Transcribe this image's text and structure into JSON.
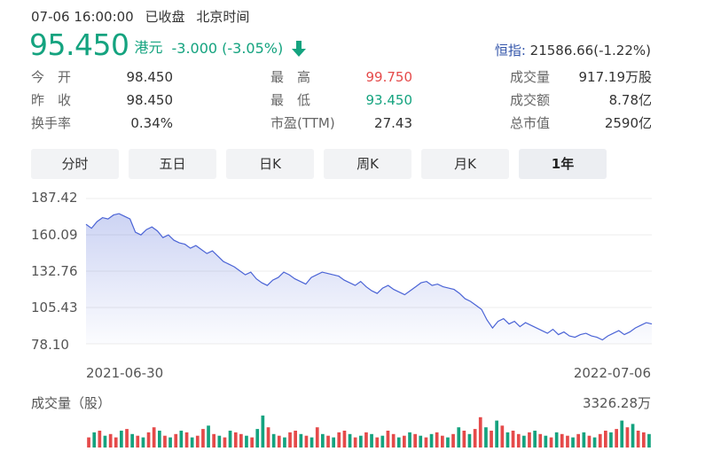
{
  "status": {
    "time": "07-06 16:00:00",
    "state": "已收盘",
    "tz": "北京时间"
  },
  "quote": {
    "price": "95.450",
    "currency": "港元",
    "change": "-3.000 (-3.05%)",
    "direction": "down"
  },
  "index": {
    "label": "恒指:",
    "value": "21586.66(-1.22%)"
  },
  "stats": [
    {
      "label": "今　开",
      "value": "98.450"
    },
    {
      "label": "最　高",
      "value": "99.750"
    },
    {
      "label": "成交量",
      "value": "917.19万股"
    },
    {
      "label": "昨　收",
      "value": "98.450"
    },
    {
      "label": "最　低",
      "value": "93.450"
    },
    {
      "label": "成交额",
      "value": "8.78亿"
    },
    {
      "label": "换手率",
      "value": "0.34%"
    },
    {
      "label": "市盈(TTM)",
      "value": "27.43"
    },
    {
      "label": "总市值",
      "value": "2590亿"
    }
  ],
  "tabs": [
    {
      "label": "分时",
      "active": false
    },
    {
      "label": "五日",
      "active": false
    },
    {
      "label": "日K",
      "active": false
    },
    {
      "label": "周K",
      "active": false
    },
    {
      "label": "月K",
      "active": false
    },
    {
      "label": "1年",
      "active": true
    }
  ],
  "colors": {
    "up": "#e54a4a",
    "down": "#14a37f",
    "line": "#4b64d6"
  },
  "chart_data": [
    {
      "type": "area",
      "y_ticks": [
        "187.42",
        "160.09",
        "132.76",
        "105.43",
        "78.10"
      ],
      "ylim": [
        78.1,
        187.42
      ],
      "x_labels": [
        "2021-06-30",
        "2022-07-06"
      ],
      "grid": true,
      "values": [
        168,
        165,
        170,
        173,
        172,
        175,
        176,
        174,
        172,
        162,
        160,
        164,
        166,
        163,
        158,
        160,
        156,
        154,
        153,
        150,
        152,
        149,
        146,
        148,
        144,
        140,
        138,
        136,
        133,
        130,
        132,
        127,
        124,
        122,
        126,
        128,
        132,
        130,
        127,
        125,
        123,
        128,
        130,
        132,
        131,
        130,
        129,
        126,
        124,
        122,
        125,
        121,
        118,
        116,
        120,
        122,
        119,
        117,
        115,
        118,
        121,
        124,
        125,
        122,
        123,
        121,
        120,
        119,
        116,
        112,
        110,
        107,
        104,
        96,
        90,
        95,
        97,
        93,
        95,
        91,
        94,
        92,
        90,
        88,
        86,
        89,
        85,
        87,
        84,
        83,
        85,
        86,
        84,
        83,
        81,
        84,
        86,
        88,
        85,
        87,
        90,
        92,
        94,
        93
      ]
    },
    {
      "type": "bar",
      "title": "成交量（股）",
      "max_label": "3326.28万",
      "values": [
        0.3,
        0.45,
        0.5,
        0.35,
        0.4,
        0.3,
        0.5,
        0.55,
        0.4,
        0.35,
        0.3,
        0.45,
        0.6,
        0.5,
        0.35,
        0.3,
        0.4,
        0.5,
        0.45,
        0.3,
        0.35,
        0.55,
        0.65,
        0.4,
        0.35,
        0.3,
        0.5,
        0.45,
        0.4,
        0.35,
        0.3,
        0.55,
        0.95,
        0.6,
        0.4,
        0.35,
        0.3,
        0.45,
        0.5,
        0.4,
        0.35,
        0.3,
        0.6,
        0.4,
        0.35,
        0.3,
        0.45,
        0.5,
        0.4,
        0.3,
        0.35,
        0.45,
        0.4,
        0.3,
        0.35,
        0.5,
        0.4,
        0.3,
        0.35,
        0.45,
        0.4,
        0.35,
        0.3,
        0.4,
        0.45,
        0.35,
        0.3,
        0.4,
        0.6,
        0.5,
        0.4,
        0.55,
        0.9,
        0.6,
        0.5,
        0.8,
        0.65,
        0.45,
        0.5,
        0.4,
        0.35,
        0.45,
        0.5,
        0.4,
        0.35,
        0.3,
        0.45,
        0.4,
        0.35,
        0.3,
        0.4,
        0.45,
        0.35,
        0.3,
        0.4,
        0.5,
        0.45,
        0.55,
        0.8,
        0.6,
        0.7,
        0.5,
        0.45,
        0.4
      ],
      "up": [
        1,
        0,
        1,
        0,
        1,
        1,
        0,
        1,
        0,
        1,
        0,
        1,
        1,
        0,
        1,
        0,
        1,
        0,
        1,
        0,
        1,
        1,
        0,
        1,
        0,
        1,
        0,
        1,
        1,
        0,
        1,
        0,
        0,
        1,
        0,
        1,
        0,
        1,
        1,
        0,
        1,
        0,
        1,
        0,
        1,
        0,
        1,
        1,
        0,
        1,
        0,
        1,
        0,
        1,
        0,
        1,
        1,
        0,
        1,
        0,
        1,
        0,
        1,
        0,
        1,
        1,
        0,
        1,
        0,
        1,
        0,
        1,
        1,
        0,
        1,
        0,
        1,
        0,
        1,
        1,
        0,
        1,
        0,
        1,
        0,
        1,
        0,
        1,
        1,
        0,
        1,
        0,
        1,
        0,
        1,
        1,
        0,
        1,
        0,
        1,
        0,
        1,
        1,
        0
      ]
    }
  ]
}
